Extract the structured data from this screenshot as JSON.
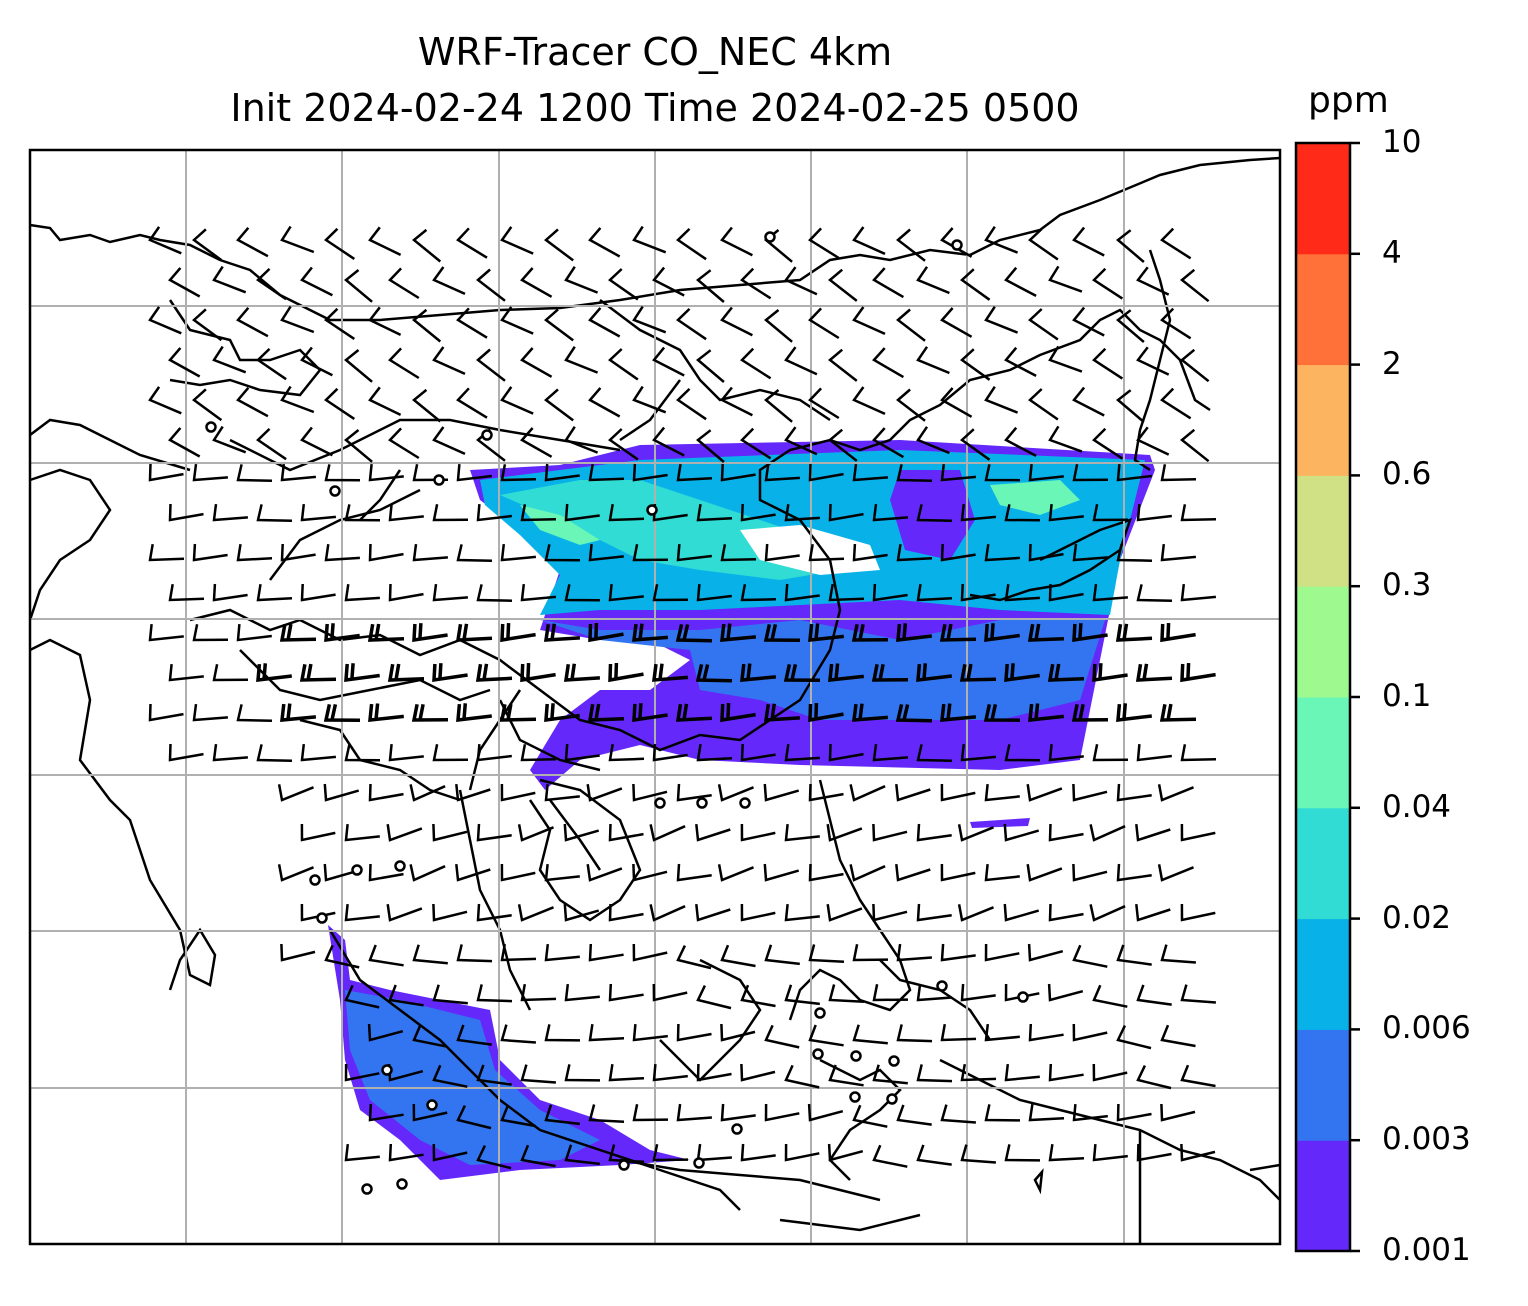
{
  "title": {
    "line1": "WRF-Tracer CO_NEC 4km",
    "line2": "Init 2024-02-24 1200 Time 2024-02-25 0500"
  },
  "colorbar": {
    "unit": "ppm",
    "levels": [
      "0.001",
      "0.003",
      "0.006",
      "0.02",
      "0.04",
      "0.1",
      "0.3",
      "0.6",
      "2",
      "4",
      "10"
    ],
    "colors": [
      "#6428fa",
      "#3375f0",
      "#08b2e9",
      "#30dcd4",
      "#69f6b6",
      "#9ef98f",
      "#cfe085",
      "#fdb461",
      "#ff7138",
      "#ff2a17"
    ]
  },
  "map": {
    "gridlines": true,
    "features": [
      "coastlines",
      "country-borders",
      "wind-barbs",
      "tracer-concentration"
    ],
    "calm_marker": "circle"
  }
}
